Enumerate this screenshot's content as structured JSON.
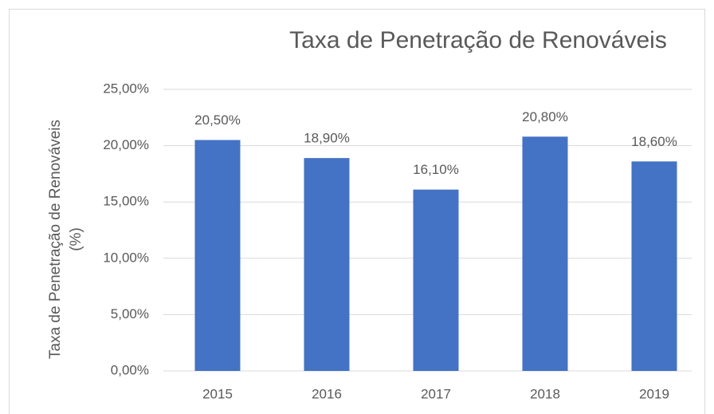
{
  "chart_data": {
    "type": "bar",
    "title": "Taxa de Penetração de Renováveis",
    "ylabel": [
      "Taxa de Penetração de Renováveis",
      "(%)"
    ],
    "categories": [
      "2015",
      "2016",
      "2017",
      "2018",
      "2019"
    ],
    "values": [
      20.5,
      18.9,
      16.1,
      20.8,
      18.6
    ],
    "value_labels": [
      "20,50%",
      "18,90%",
      "16,10%",
      "20,80%",
      "18,60%"
    ],
    "color": "#4472c4",
    "ylim": [
      0,
      25
    ],
    "yticks": [
      {
        "value": 0,
        "label": "0,00%"
      },
      {
        "value": 5,
        "label": "5,00%"
      },
      {
        "value": 10,
        "label": "10,00%"
      },
      {
        "value": 15,
        "label": "15,00%"
      },
      {
        "value": 20,
        "label": "20,00%"
      },
      {
        "value": 25,
        "label": "25,00%"
      }
    ],
    "grid": true
  }
}
